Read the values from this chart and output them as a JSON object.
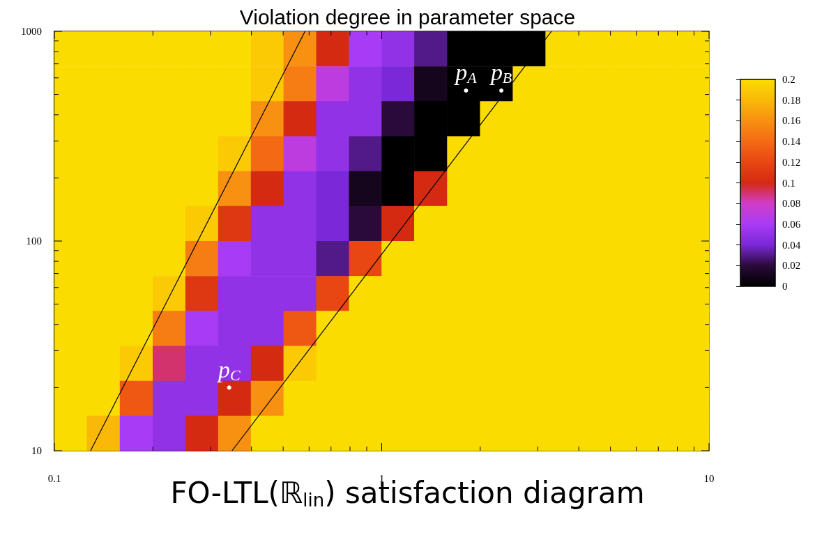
{
  "chart_data": {
    "type": "heatmap",
    "title": "Violation degree in parameter space",
    "annotations": [
      "FO-LTL(ℝ$_{lin}$) satisfaction diagram"
    ],
    "log": "xy",
    "grid": false,
    "xlim": [
      0.1,
      10
    ],
    "ylim": [
      10,
      1000
    ],
    "xticks": [
      0.1,
      {
        "value": 0.2,
        "label": null
      },
      {
        "value": 0.3,
        "label": null
      },
      {
        "value": 0.4,
        "label": null
      },
      {
        "value": 0.5,
        "label": null
      },
      {
        "value": 0.6,
        "label": null
      },
      {
        "value": 0.7,
        "label": null
      },
      {
        "value": 0.8,
        "label": null
      },
      {
        "value": 0.9,
        "label": null
      },
      1,
      {
        "value": 2,
        "label": null
      },
      {
        "value": 3,
        "label": null
      },
      {
        "value": 4,
        "label": null
      },
      {
        "value": 5,
        "label": null
      },
      {
        "value": 6,
        "label": null
      },
      {
        "value": 7,
        "label": null
      },
      {
        "value": 8,
        "label": null
      },
      {
        "value": 9,
        "label": null
      },
      10
    ],
    "yticks": [
      10,
      {
        "value": 20,
        "label": null
      },
      {
        "value": 30,
        "label": null
      },
      {
        "value": 40,
        "label": null
      },
      {
        "value": 50,
        "label": null
      },
      {
        "value": 60,
        "label": null
      },
      {
        "value": 70,
        "label": null
      },
      {
        "value": 80,
        "label": null
      },
      {
        "value": 90,
        "label": null
      },
      100,
      {
        "value": 200,
        "label": null
      },
      {
        "value": 300,
        "label": null
      },
      {
        "value": 400,
        "label": null
      },
      {
        "value": 500,
        "label": null
      },
      {
        "value": 600,
        "label": null
      },
      {
        "value": 700,
        "label": null
      },
      {
        "value": 800,
        "label": null
      },
      {
        "value": 900,
        "label": null
      },
      1000
    ],
    "clim": [
      0,
      0.2
    ],
    "cticks": [
      0,
      0.02,
      0.04,
      0.06,
      0.08,
      0.1,
      0.12,
      0.14,
      0.16,
      0.18,
      0.2
    ],
    "x": [
      0.112,
      0.141,
      0.178,
      0.224,
      0.282,
      0.355,
      0.447,
      0.562,
      0.708,
      0.891,
      1.12,
      1.41,
      1.78,
      2.24,
      2.82,
      3.55,
      4.47,
      5.62,
      7.08,
      8.91
    ],
    "cells": [
      [
        0.2,
        0.2,
        0.2,
        0.2,
        0.2,
        0.2,
        0.19,
        0.16,
        0.1,
        0.06,
        0.05,
        0.03,
        0,
        0,
        0,
        0.2,
        0.2,
        0.2,
        0.2,
        0.2
      ],
      [
        0.2,
        0.2,
        0.2,
        0.2,
        0.2,
        0.2,
        0.19,
        0.15,
        0.07,
        0.05,
        0.04,
        0.01,
        0,
        0,
        0.2,
        0.2,
        0.2,
        0.2,
        0.2,
        0.2
      ],
      [
        0.2,
        0.2,
        0.2,
        0.2,
        0.2,
        0.2,
        0.16,
        0.1,
        0.05,
        0.05,
        0.02,
        0,
        0,
        0.2,
        0.2,
        0.2,
        0.2,
        0.2,
        0.2,
        0.2
      ],
      [
        0.2,
        0.2,
        0.2,
        0.2,
        0.2,
        0.19,
        0.14,
        0.07,
        0.05,
        0.03,
        0,
        0,
        0.2,
        0.2,
        0.2,
        0.2,
        0.2,
        0.2,
        0.2,
        0.2
      ],
      [
        0.2,
        0.2,
        0.2,
        0.2,
        0.2,
        0.16,
        0.1,
        0.05,
        0.04,
        0.01,
        0,
        0.1,
        0.2,
        0.2,
        0.2,
        0.2,
        0.2,
        0.2,
        0.2,
        0.2
      ],
      [
        0.2,
        0.2,
        0.2,
        0.2,
        0.19,
        0.11,
        0.05,
        0.05,
        0.04,
        0.02,
        0.1,
        0.2,
        0.2,
        0.2,
        0.2,
        0.2,
        0.2,
        0.2,
        0.2,
        0.2
      ],
      [
        0.2,
        0.2,
        0.2,
        0.2,
        0.15,
        0.06,
        0.05,
        0.05,
        0.03,
        0.12,
        0.2,
        0.2,
        0.2,
        0.2,
        0.2,
        0.2,
        0.2,
        0.2,
        0.2,
        0.2
      ],
      [
        0.2,
        0.2,
        0.2,
        0.19,
        0.11,
        0.05,
        0.05,
        0.05,
        0.12,
        0.2,
        0.2,
        0.2,
        0.2,
        0.2,
        0.2,
        0.2,
        0.2,
        0.2,
        0.2,
        0.2
      ],
      [
        0.2,
        0.2,
        0.2,
        0.15,
        0.06,
        0.05,
        0.05,
        0.13,
        0.2,
        0.2,
        0.2,
        0.2,
        0.2,
        0.2,
        0.2,
        0.2,
        0.2,
        0.2,
        0.2,
        0.2
      ],
      [
        0.2,
        0.2,
        0.19,
        0.09,
        0.05,
        0.05,
        0.1,
        0.19,
        0.2,
        0.2,
        0.2,
        0.2,
        0.2,
        0.2,
        0.2,
        0.2,
        0.2,
        0.2,
        0.2,
        0.2
      ],
      [
        0.2,
        0.2,
        0.13,
        0.05,
        0.05,
        0.1,
        0.16,
        0.2,
        0.2,
        0.2,
        0.2,
        0.2,
        0.2,
        0.2,
        0.2,
        0.2,
        0.2,
        0.2,
        0.2,
        0.2
      ],
      [
        0.2,
        0.18,
        0.06,
        0.05,
        0.1,
        0.16,
        0.2,
        0.2,
        0.2,
        0.2,
        0.2,
        0.2,
        0.2,
        0.2,
        0.2,
        0.2,
        0.2,
        0.2,
        0.2,
        0.2
      ]
    ],
    "series": [
      {
        "type": "line",
        "color": "#000000",
        "x": [
          0.129,
          0.583
        ],
        "values": [
          10,
          1000
        ]
      },
      {
        "type": "line",
        "color": "#000000",
        "x": [
          0.349,
          3.3
        ],
        "values": [
          10,
          1000
        ]
      },
      {
        "type": "scatter",
        "color": "#ffffff",
        "x": [
          1.81,
          2.32,
          0.342
        ],
        "values": [
          522,
          522,
          20
        ],
        "value_labels": [
          "p$_{A}$",
          "p$_{B}$",
          "p$_{C}$"
        ]
      }
    ]
  }
}
